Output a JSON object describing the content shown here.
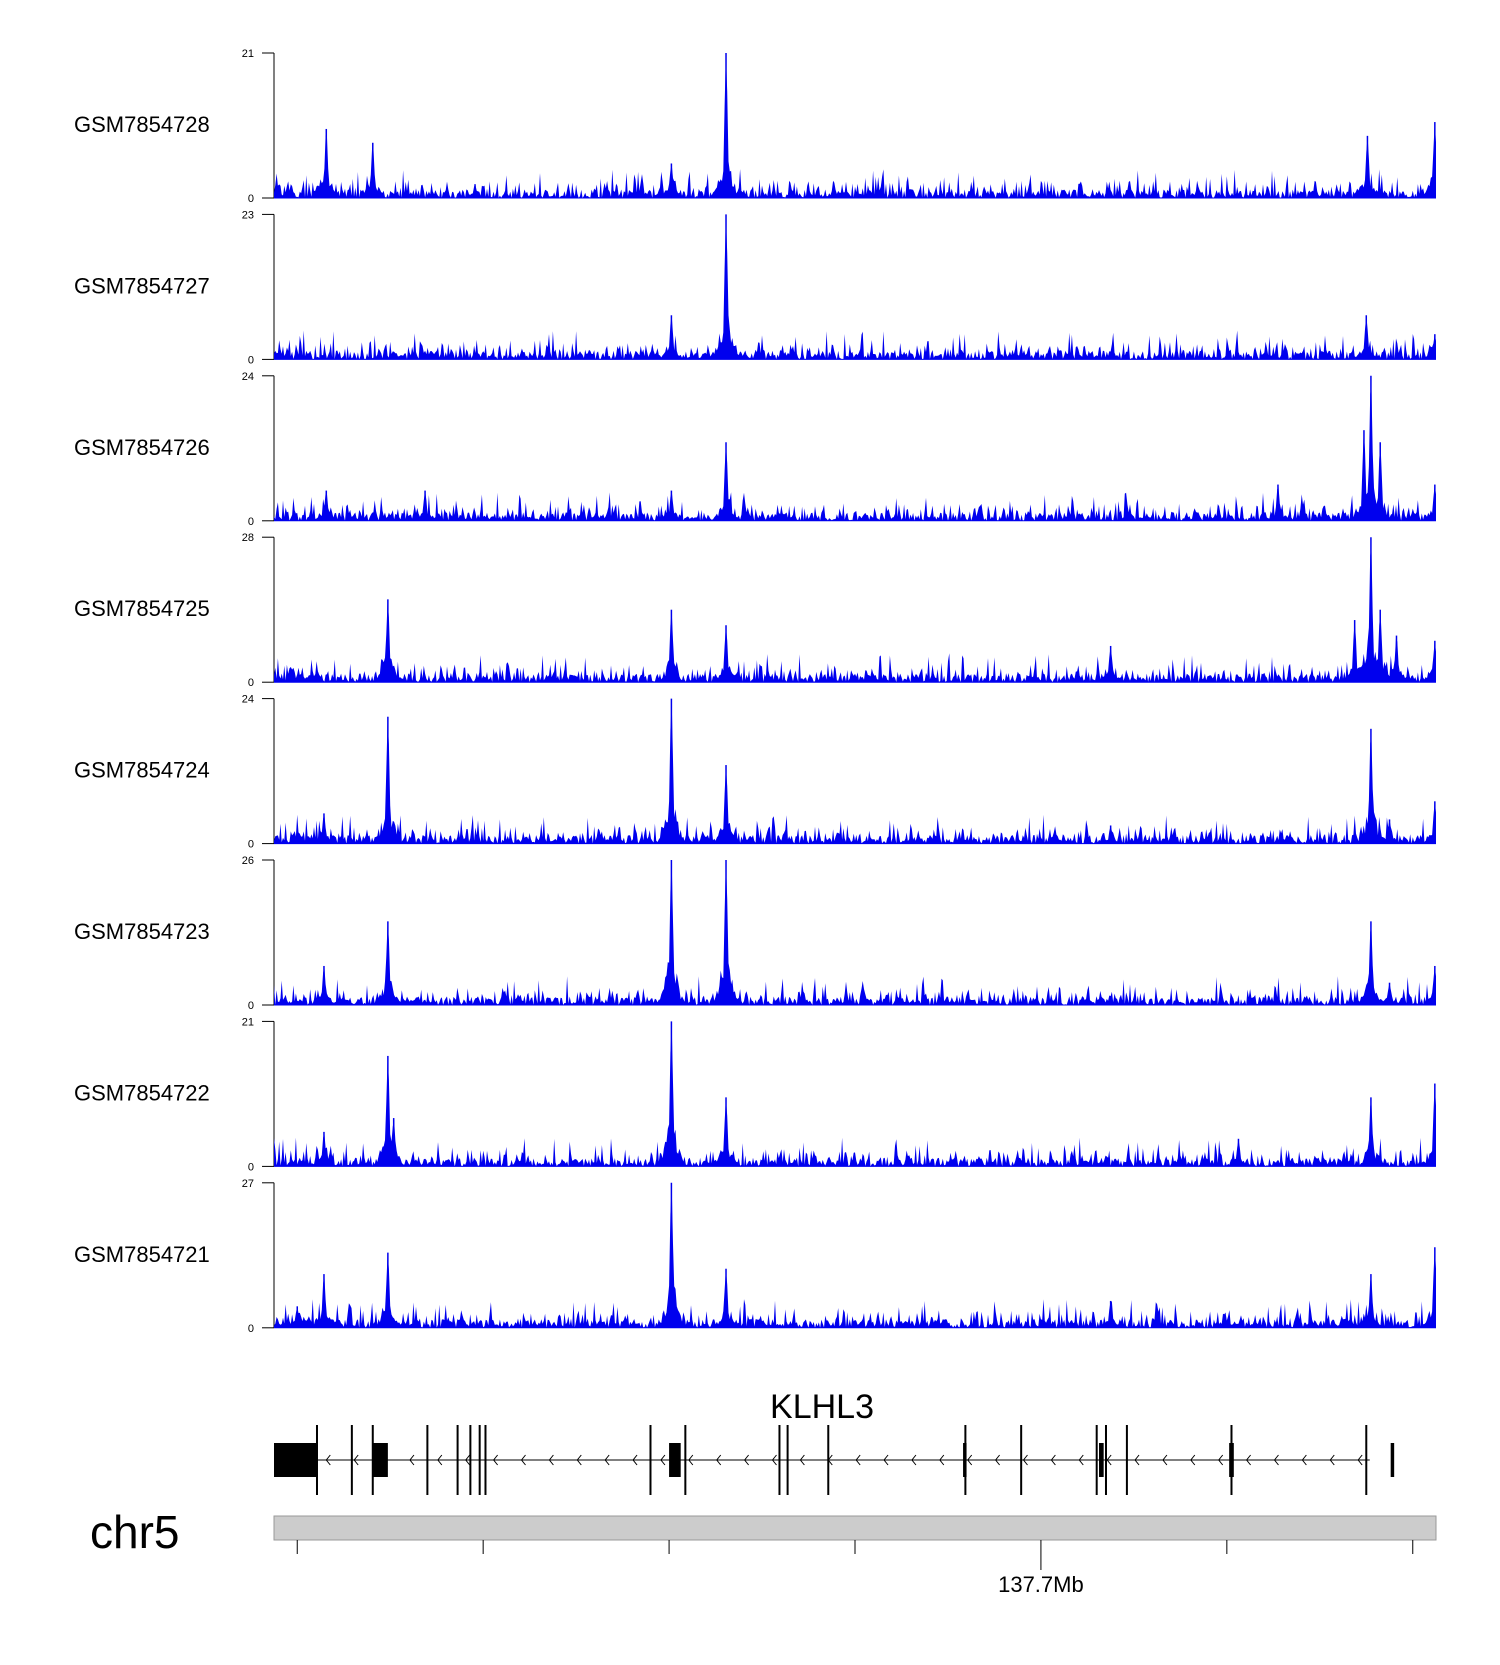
{
  "chart_data": {
    "type": "area",
    "title": "",
    "fill_color": "#0000EE",
    "region": {
      "chrom_label": "chr5",
      "position_label": "137.7Mb",
      "gene_label": "KLHL3"
    },
    "x_range": [
      0,
      100
    ],
    "tracks": [
      {
        "name": "GSM7854728",
        "ymin": "0",
        "ymax": "21",
        "ymax_value": 21,
        "peaks": [
          [
            4.5,
            10
          ],
          [
            8.5,
            8
          ],
          [
            17.3,
            2
          ],
          [
            34.2,
            5
          ],
          [
            38.9,
            21
          ],
          [
            94.1,
            9
          ],
          [
            99.9,
            11
          ]
        ]
      },
      {
        "name": "GSM7854727",
        "ymin": "0",
        "ymax": "23",
        "ymax_value": 23,
        "peaks": [
          [
            34.2,
            7
          ],
          [
            38.9,
            23
          ],
          [
            94.0,
            7
          ],
          [
            99.9,
            4
          ]
        ]
      },
      {
        "name": "GSM7854726",
        "ymin": "0",
        "ymax": "24",
        "ymax_value": 24,
        "peaks": [
          [
            4.5,
            5
          ],
          [
            13.0,
            5
          ],
          [
            34.2,
            5
          ],
          [
            38.9,
            13
          ],
          [
            86.4,
            6
          ],
          [
            93.8,
            15
          ],
          [
            94.4,
            24
          ],
          [
            95.2,
            13
          ],
          [
            99.9,
            6
          ]
        ]
      },
      {
        "name": "GSM7854725",
        "ymin": "0",
        "ymax": "28",
        "ymax_value": 28,
        "peaks": [
          [
            9.8,
            16
          ],
          [
            34.2,
            14
          ],
          [
            38.9,
            11
          ],
          [
            72.0,
            7
          ],
          [
            93.0,
            12
          ],
          [
            94.4,
            28
          ],
          [
            95.2,
            14
          ],
          [
            96.6,
            9
          ],
          [
            99.9,
            8
          ]
        ]
      },
      {
        "name": "GSM7854724",
        "ymin": "0",
        "ymax": "24",
        "ymax_value": 24,
        "peaks": [
          [
            4.3,
            5
          ],
          [
            9.8,
            21
          ],
          [
            34.2,
            24
          ],
          [
            38.9,
            13
          ],
          [
            72.0,
            3
          ],
          [
            94.4,
            19
          ],
          [
            96.0,
            4
          ],
          [
            99.9,
            7
          ]
        ]
      },
      {
        "name": "GSM7854723",
        "ymin": "0",
        "ymax": "26",
        "ymax_value": 26,
        "peaks": [
          [
            4.3,
            7
          ],
          [
            9.8,
            15
          ],
          [
            34.2,
            26
          ],
          [
            38.9,
            26
          ],
          [
            94.4,
            15
          ],
          [
            96.0,
            4
          ],
          [
            99.9,
            7
          ]
        ]
      },
      {
        "name": "GSM7854722",
        "ymin": "0",
        "ymax": "21",
        "ymax_value": 21,
        "peaks": [
          [
            4.3,
            5
          ],
          [
            9.8,
            16
          ],
          [
            10.3,
            7
          ],
          [
            34.2,
            21
          ],
          [
            38.9,
            10
          ],
          [
            83.0,
            4
          ],
          [
            94.4,
            10
          ],
          [
            99.9,
            12
          ]
        ]
      },
      {
        "name": "GSM7854721",
        "ymin": "0",
        "ymax": "27",
        "ymax_value": 27,
        "peaks": [
          [
            2.0,
            4
          ],
          [
            4.3,
            10
          ],
          [
            9.8,
            14
          ],
          [
            34.2,
            27
          ],
          [
            38.9,
            11
          ],
          [
            72.0,
            5
          ],
          [
            94.4,
            10
          ],
          [
            99.9,
            15
          ]
        ]
      }
    ],
    "gene_model": {
      "strand": "-",
      "exons": [
        [
          0,
          3.7
        ],
        [
          8.5,
          9.8
        ],
        [
          34.0,
          35.0
        ],
        [
          96.1,
          96.4
        ],
        [
          82.2,
          82.6
        ],
        [
          71.0,
          71.4
        ],
        [
          59.3,
          59.6
        ]
      ],
      "thin_exons": [
        3.7,
        6.7,
        8.5,
        13.2,
        15.8,
        16.9,
        17.7,
        18.2,
        32.4,
        35.4,
        43.5,
        44.2,
        47.7,
        59.5,
        64.3,
        70.8,
        71.6,
        73.4,
        82.4,
        94.0
      ]
    },
    "axis_ticks": [
      2,
      18,
      34,
      50,
      66,
      82,
      98
    ],
    "labeled_tick": 66
  }
}
